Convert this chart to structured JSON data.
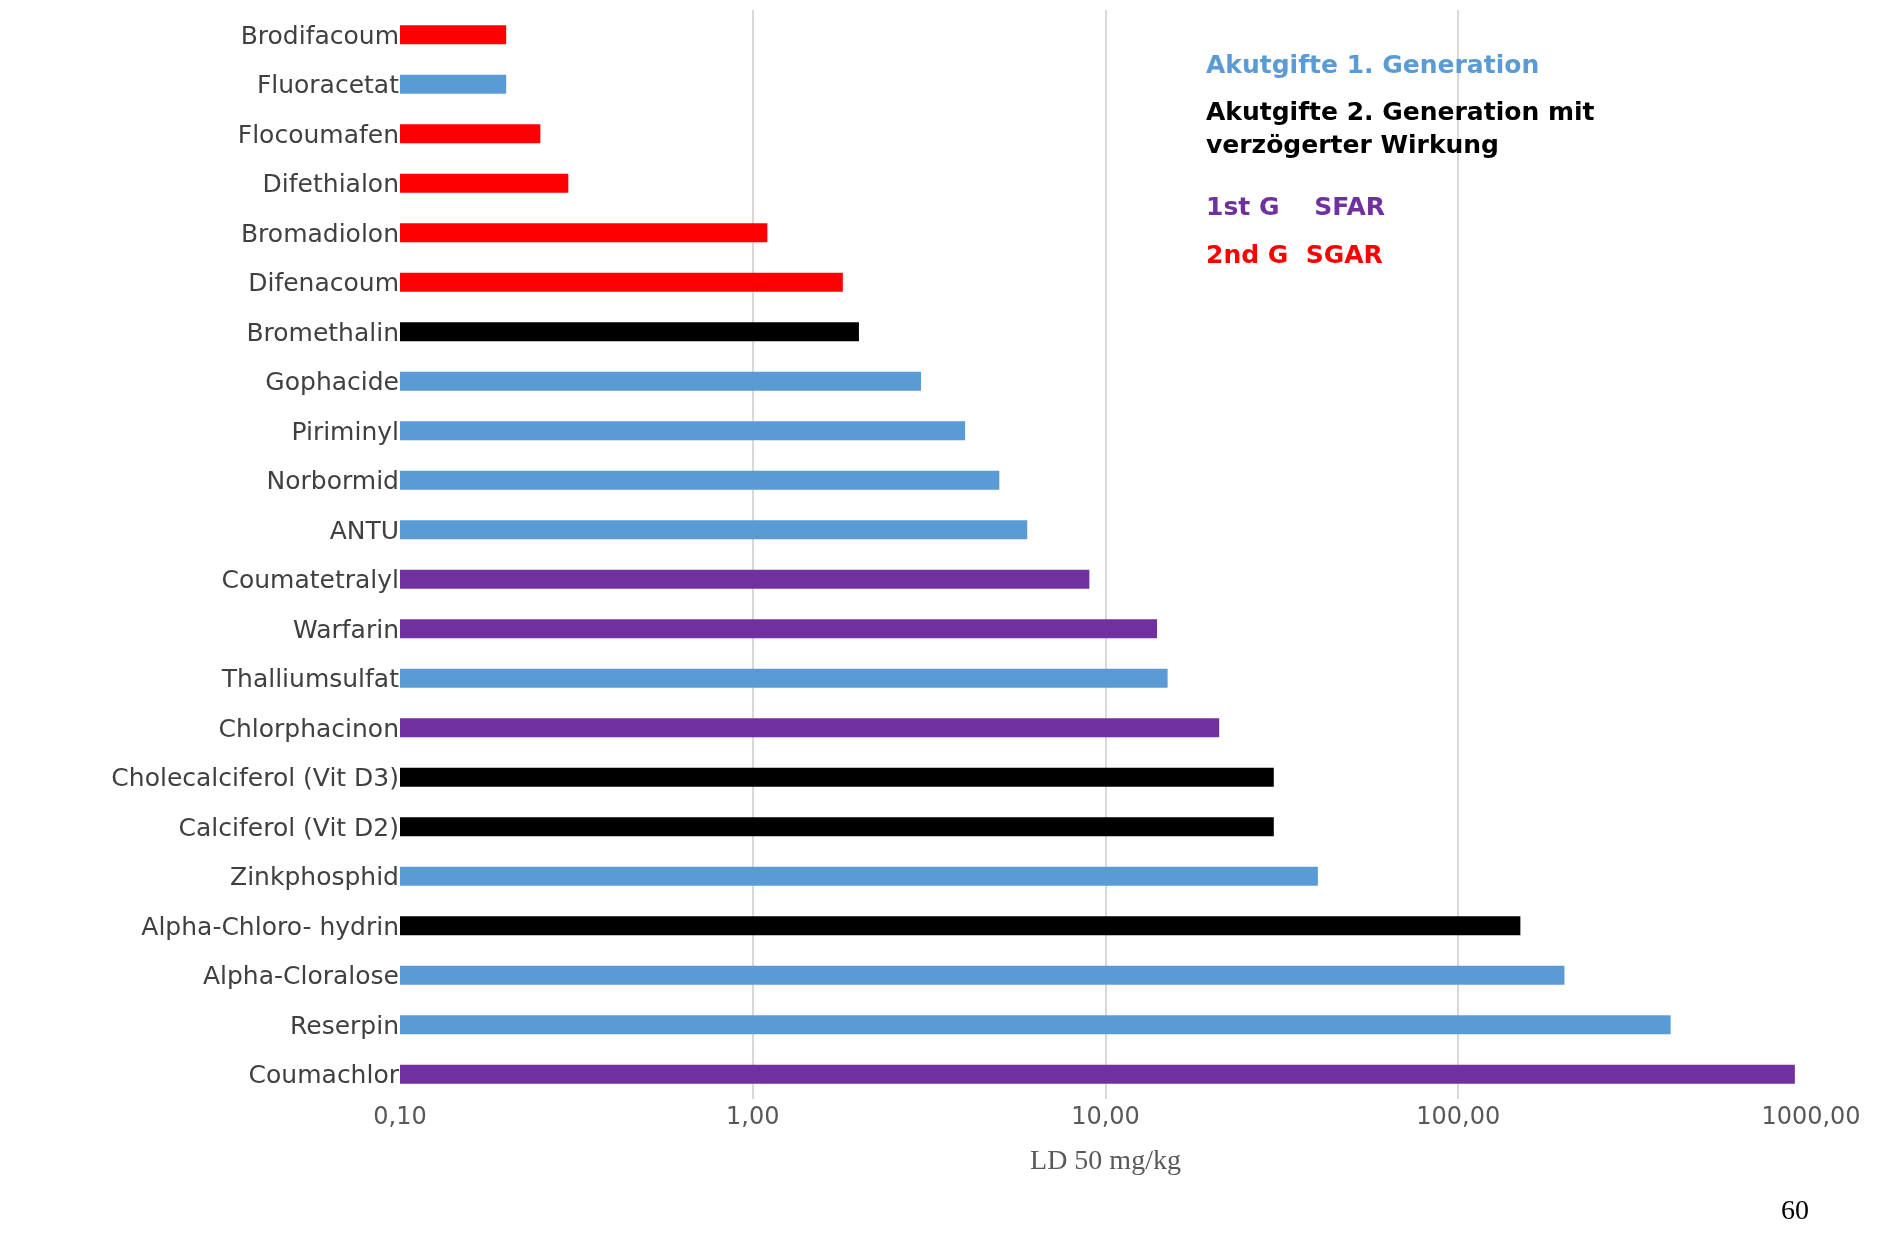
{
  "chart_data": {
    "type": "bar",
    "orientation": "horizontal",
    "log": "x",
    "xlabel": "LD 50 mg/kg",
    "categories": [
      "Brodifacoum",
      "Fluoracetat",
      "Flocoumafen",
      "Difethialon",
      "Bromadiolon",
      "Difenacoum",
      "Bromethalin",
      "Gophacide",
      "Piriminyl",
      "Norbormid",
      "ANTU",
      "Coumatetralyl",
      "Warfarin",
      "Thalliumsulfat",
      "Chlorphacinon",
      "Cholecalciferol (Vit D3)",
      "Calciferol (Vit D2)",
      "Zinkphosphid",
      "Alpha-Chloro- hydrin",
      "Alpha-Cloralose",
      "Reserpin",
      "Coumachlor"
    ],
    "series": [
      {
        "name": "Akutgifte 1. Generation",
        "color": "#5b9bd5",
        "values": [
          null,
          0.2,
          null,
          null,
          null,
          null,
          null,
          3,
          4,
          5,
          6,
          null,
          null,
          15,
          null,
          null,
          null,
          40,
          null,
          200,
          400,
          null
        ]
      },
      {
        "name": "Akutgifte 2. Generation mit verzögerter Wirkung",
        "color": "#000000",
        "values": [
          null,
          null,
          null,
          null,
          null,
          null,
          2,
          null,
          null,
          null,
          null,
          null,
          null,
          null,
          null,
          30,
          30,
          null,
          150,
          null,
          null,
          null
        ]
      },
      {
        "name": "1st G    SFAR",
        "color": "#7030a0",
        "values": [
          null,
          null,
          null,
          null,
          null,
          null,
          null,
          null,
          null,
          null,
          null,
          9,
          14,
          null,
          21,
          null,
          null,
          null,
          null,
          null,
          null,
          900
        ]
      },
      {
        "name": "2nd G  SGAR",
        "color": "#ff0000",
        "values": [
          0.2,
          null,
          0.25,
          0.3,
          1.1,
          1.8,
          null,
          null,
          null,
          null,
          null,
          null,
          null,
          null,
          null,
          null,
          null,
          null,
          null,
          null,
          null,
          null
        ]
      }
    ],
    "xlim": [
      0.1,
      1000
    ],
    "xticks": [
      {
        "value": 0.1,
        "label": "0,10"
      },
      {
        "value": 1,
        "label": "1,00"
      },
      {
        "value": 10,
        "label": "10,00"
      },
      {
        "value": 100,
        "label": "100,00"
      },
      {
        "value": 1000,
        "label": "1000,00"
      }
    ],
    "grid": "x",
    "legend": "top right",
    "annotations": [
      "60"
    ]
  }
}
